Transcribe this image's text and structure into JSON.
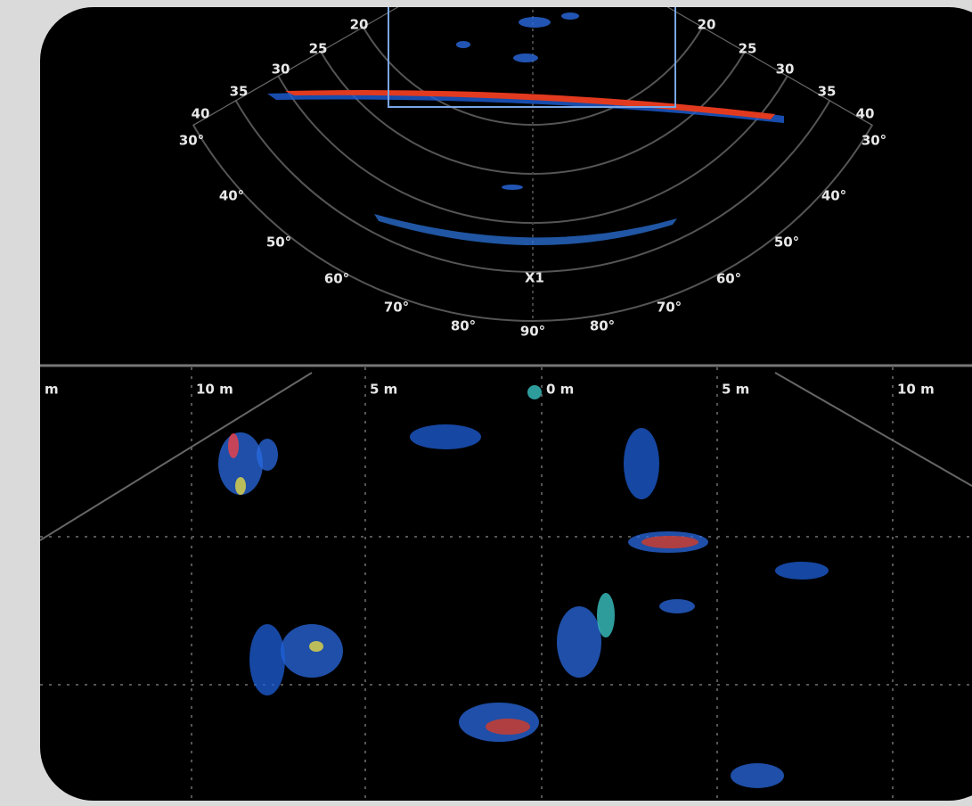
{
  "range_labels": {
    "left": [
      "20",
      "25",
      "30",
      "35",
      "40"
    ],
    "right": [
      "20",
      "25",
      "30",
      "35",
      "40"
    ]
  },
  "angle_labels": {
    "left": [
      "30°",
      "40°",
      "50°",
      "60°",
      "70°",
      "80°"
    ],
    "center": "90°",
    "right": [
      "30°",
      "40°",
      "50°",
      "60°",
      "70°",
      "80°"
    ]
  },
  "marker": "X1",
  "scale_labels": [
    "m",
    "10 m",
    "5 m",
    "0 m",
    "5 m",
    "10 m"
  ]
}
